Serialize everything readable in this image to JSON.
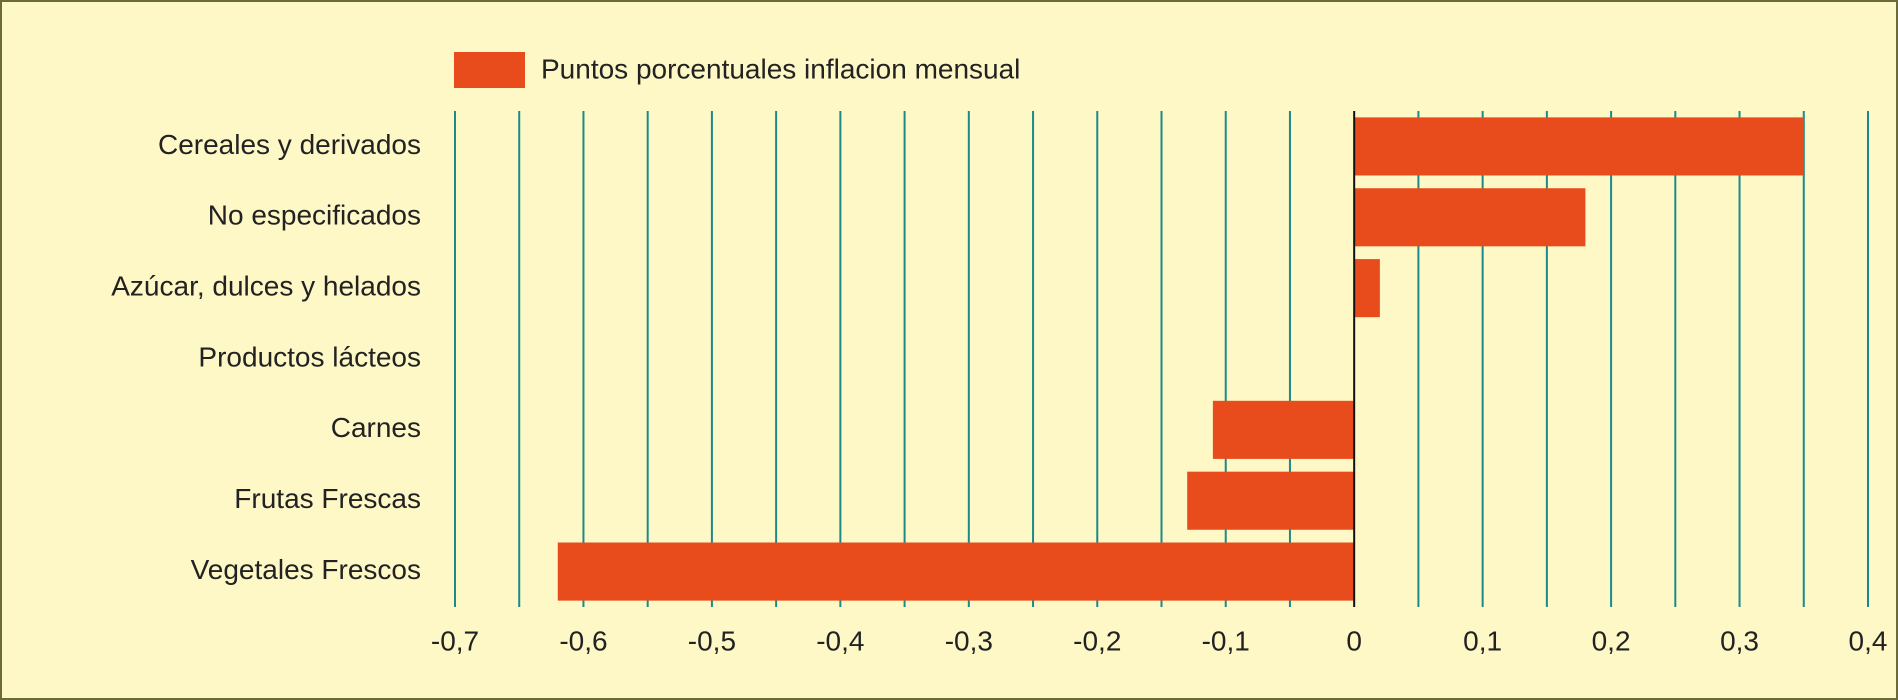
{
  "chart_data": {
    "type": "barh",
    "legend": "Puntos porcentuales inflacion mensual",
    "categories": [
      "Cereales y derivados",
      "No especificados",
      "Azúcar, dulces y helados",
      "Productos lácteos",
      "Carnes",
      "Frutas Frescas",
      "Vegetales Frescos"
    ],
    "values": [
      0.35,
      0.18,
      0.02,
      0,
      -0.11,
      -0.13,
      -0.62
    ],
    "color": "#e84c1c",
    "xlim": [
      -0.7,
      0.4
    ],
    "xticks": [
      {
        "value": -0.7,
        "label": "-0,7"
      },
      {
        "value": -0.6,
        "label": "-0,6"
      },
      {
        "value": -0.5,
        "label": "-0,5"
      },
      {
        "value": -0.4,
        "label": "-0,4"
      },
      {
        "value": -0.3,
        "label": "-0,3"
      },
      {
        "value": -0.2,
        "label": "-0,2"
      },
      {
        "value": -0.1,
        "label": "-0,1"
      },
      0,
      {
        "value": 0.1,
        "label": "0,1"
      },
      {
        "value": 0.2,
        "label": "0,2"
      },
      {
        "value": 0.3,
        "label": "0,3"
      },
      {
        "value": 0.4,
        "label": "0,4"
      }
    ],
    "xminorticks": [
      -0.65,
      -0.55,
      -0.45,
      -0.35,
      -0.25,
      -0.15,
      -0.05,
      0.05,
      0.15,
      0.25,
      0.35
    ],
    "grid": true,
    "grid_color": "#1a8a8a"
  }
}
